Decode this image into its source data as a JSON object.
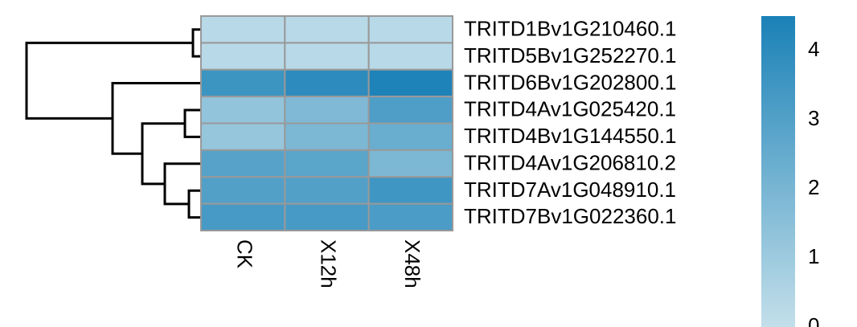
{
  "chart_data": {
    "type": "heatmap",
    "rows": [
      "TRITD1Bv1G210460.1",
      "TRITD5Bv1G252270.1",
      "TRITD6Bv1G202800.1",
      "TRITD4Av1G025420.1",
      "TRITD4Bv1G144550.1",
      "TRITD4Av1G206810.2",
      "TRITD7Av1G048910.1",
      "TRITD7Bv1G022360.1"
    ],
    "columns": [
      "CK",
      "X12h",
      "X48h"
    ],
    "values": [
      [
        0.3,
        0.3,
        0.3
      ],
      [
        0.3,
        0.3,
        0.3
      ],
      [
        3.6,
        4.0,
        4.4
      ],
      [
        1.3,
        1.8,
        3.1
      ],
      [
        1.2,
        1.9,
        2.4
      ],
      [
        2.9,
        2.8,
        1.9
      ],
      [
        3.0,
        3.0,
        3.5
      ],
      [
        3.3,
        3.3,
        3.2
      ]
    ],
    "colors": [
      "#c3dfea",
      "#1a81b7"
    ],
    "clim": [
      0,
      4.5
    ],
    "cticks": [
      0,
      1,
      2,
      3,
      4
    ]
  }
}
